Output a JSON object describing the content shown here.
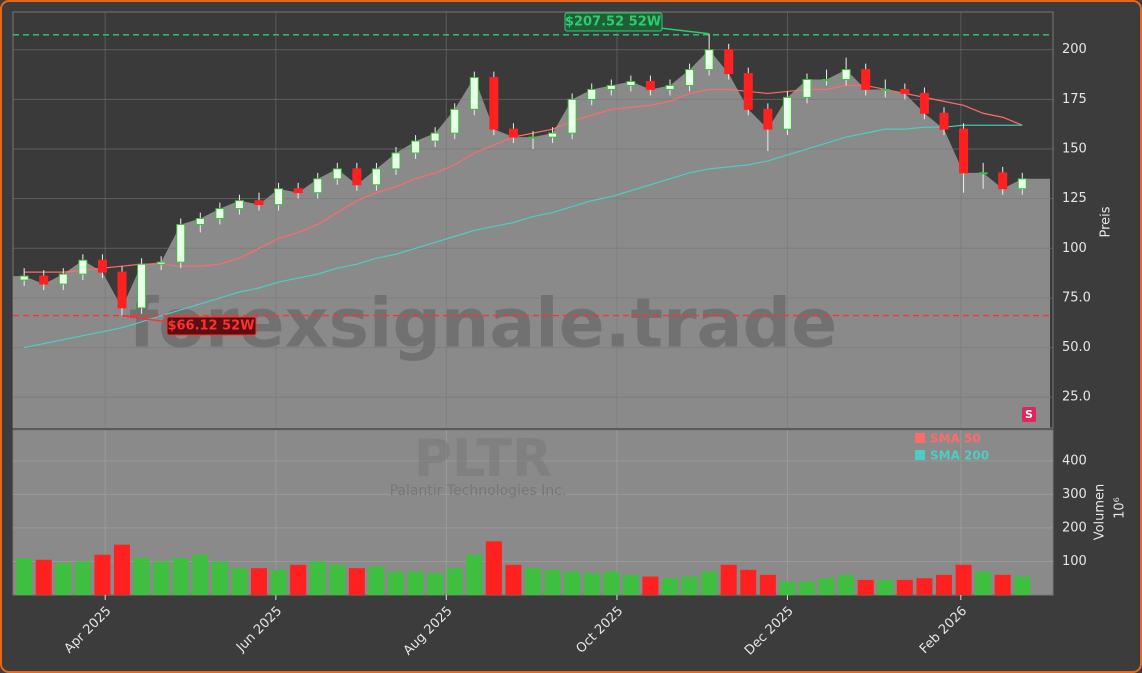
{
  "chart_data": {
    "type": "candlestick",
    "ticker": "PLTR",
    "company": "Palantir Technologies Inc.",
    "watermark": "forexsignale.trade",
    "y_label": "Preis",
    "y2_label": "Volumen",
    "y2_unit": "10⁶",
    "badge": "S",
    "xlim": [
      -0.57,
      52.57
    ],
    "xticks": [
      {
        "value": 4.14,
        "label": "Apr 2025"
      },
      {
        "value": 12.86,
        "label": "Jun 2025"
      },
      {
        "value": 21.57,
        "label": "Aug 2025"
      },
      {
        "value": 30.29,
        "label": "Oct 2025"
      },
      {
        "value": 39,
        "label": "Dec 2025"
      },
      {
        "value": 47.86,
        "label": "Feb 2026"
      }
    ],
    "ylim": [
      9.5,
      219
    ],
    "yticks": [
      {
        "value": 25,
        "label": "25.0"
      },
      {
        "value": 50,
        "label": "50.0"
      },
      {
        "value": 75,
        "label": "75.0"
      },
      100,
      125,
      150,
      175,
      200
    ],
    "y2lim": [
      0,
      492
    ],
    "y2ticks": [
      100,
      200,
      300,
      400
    ],
    "up_color": "#3fbf3f",
    "down_color": "#ff2020",
    "area_color": "#8a8a8a",
    "open": [
      84,
      86,
      82,
      87,
      94,
      88,
      70,
      92,
      93,
      112,
      115,
      120,
      124,
      122,
      130,
      128,
      135,
      140,
      132,
      140,
      148,
      154,
      158,
      170,
      186,
      160,
      156,
      156,
      158,
      175,
      180,
      182,
      184,
      180,
      182,
      190,
      200,
      188,
      170,
      160,
      176,
      185,
      185,
      190,
      180,
      180,
      178,
      168,
      160,
      138,
      138,
      130
    ],
    "high": [
      90,
      89,
      90,
      97,
      97,
      91,
      95,
      96,
      115,
      118,
      123,
      127,
      128,
      133,
      133,
      138,
      143,
      143,
      143,
      151,
      157,
      161,
      173,
      189,
      189,
      163,
      159,
      161,
      178,
      183,
      185,
      187,
      187,
      185,
      193,
      208,
      203,
      191,
      173,
      179,
      188,
      190,
      196,
      193,
      185,
      183,
      181,
      171,
      163,
      143,
      141,
      138
    ],
    "low": [
      81,
      79,
      79,
      84,
      85,
      66,
      67,
      89,
      90,
      108,
      112,
      117,
      119,
      119,
      125,
      125,
      132,
      129,
      129,
      137,
      145,
      151,
      155,
      167,
      157,
      153,
      150,
      153,
      155,
      172,
      177,
      179,
      177,
      177,
      179,
      187,
      185,
      167,
      149,
      157,
      173,
      182,
      182,
      177,
      176,
      175,
      165,
      157,
      128,
      130,
      127,
      127
    ],
    "close": [
      86,
      82,
      87,
      94,
      88,
      70,
      92,
      93,
      112,
      115,
      120,
      124,
      122,
      130,
      128,
      135,
      140,
      132,
      140,
      148,
      154,
      158,
      170,
      186,
      160,
      156,
      156,
      158,
      175,
      180,
      182,
      184,
      180,
      182,
      190,
      200,
      188,
      170,
      160,
      176,
      185,
      185,
      190,
      180,
      180,
      178,
      168,
      160,
      138,
      138,
      130,
      135
    ],
    "volume": [
      110,
      105,
      95,
      100,
      120,
      150,
      110,
      100,
      110,
      120,
      100,
      80,
      80,
      75,
      90,
      100,
      90,
      80,
      85,
      70,
      70,
      65,
      80,
      120,
      160,
      90,
      80,
      75,
      70,
      65,
      70,
      60,
      55,
      50,
      55,
      70,
      90,
      75,
      60,
      40,
      40,
      50,
      60,
      45,
      45,
      45,
      50,
      60,
      90,
      70,
      60,
      55
    ],
    "series": [
      {
        "name": "SMA 50",
        "color": "#ff6b6b",
        "values": [
          88,
          88,
          88,
          89,
          90,
          91,
          92,
          92,
          91,
          91,
          92,
          95,
          100,
          105,
          108,
          112,
          118,
          124,
          128,
          131,
          135,
          138,
          142,
          148,
          152,
          156,
          158,
          160,
          164,
          167,
          170,
          171,
          172,
          174,
          178,
          180,
          180,
          179,
          178,
          179,
          180,
          180,
          182,
          182,
          180,
          178,
          176,
          174,
          172,
          168,
          166,
          162
        ]
      },
      {
        "name": "SMA 200",
        "color": "#4ecdc4",
        "values": [
          50,
          52,
          54,
          56,
          58,
          60,
          63,
          66,
          69,
          72,
          75,
          78,
          80,
          83,
          85,
          87,
          90,
          92,
          95,
          97,
          100,
          103,
          106,
          109,
          111,
          113,
          116,
          118,
          121,
          124,
          126,
          129,
          132,
          135,
          138,
          140,
          141,
          142,
          144,
          147,
          150,
          153,
          156,
          158,
          160,
          160,
          161,
          161,
          162,
          162,
          162,
          162
        ]
      }
    ],
    "hlines": [
      {
        "value": 207.52,
        "color": "#2ecc71",
        "label": "$207.52 52W"
      },
      {
        "value": 66.12,
        "color": "#ff3030",
        "label": "$66.12 52W"
      }
    ]
  }
}
